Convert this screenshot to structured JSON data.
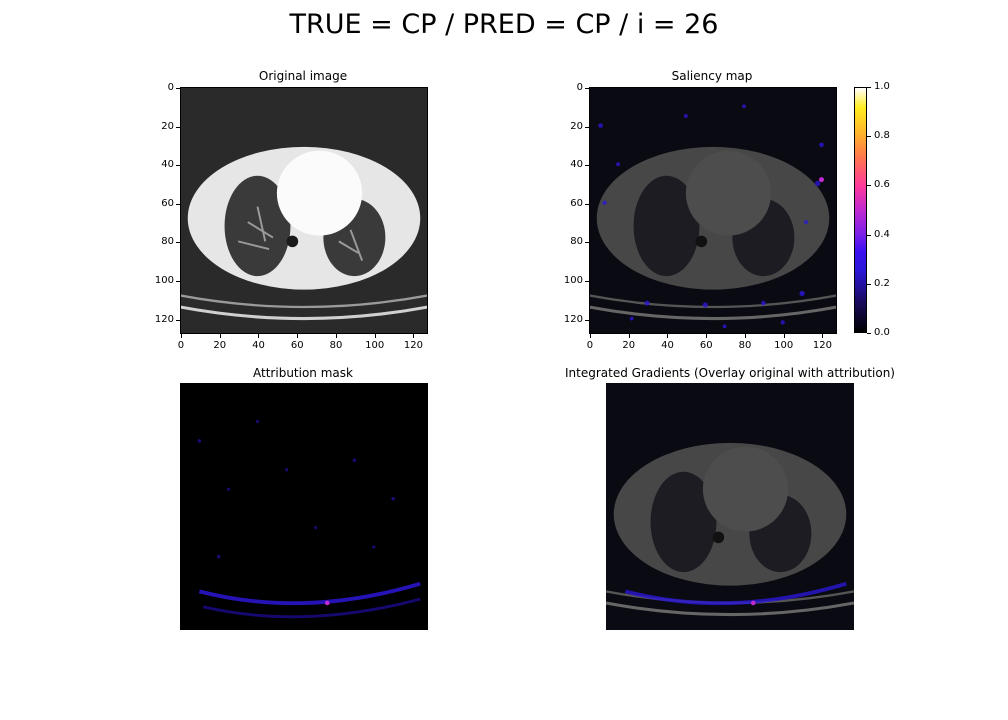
{
  "figure": {
    "suptitle": "TRUE = CP / PRED = CP / i = 26"
  },
  "panels": {
    "original": {
      "title": "Original image"
    },
    "saliency": {
      "title": "Saliency map"
    },
    "attribution": {
      "title": "Attribution mask"
    },
    "overlay": {
      "title": "Integrated Gradients (Overlay original with attribution)"
    }
  },
  "axes": {
    "y_ticks": [
      "0",
      "20",
      "40",
      "60",
      "80",
      "100",
      "120"
    ],
    "x_ticks": [
      "0",
      "20",
      "40",
      "60",
      "80",
      "100",
      "120"
    ]
  },
  "colorbar": {
    "ticks": [
      "1.0",
      "0.8",
      "0.6",
      "0.4",
      "0.2",
      "0.0"
    ],
    "colors": [
      "#000000",
      "#2b16d6",
      "#c02ad0",
      "#ff7a4a",
      "#ffee20",
      "#ffffff"
    ]
  }
}
